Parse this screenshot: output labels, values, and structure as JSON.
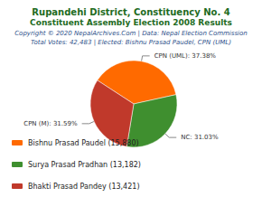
{
  "chart_data": {
    "type": "pie",
    "title": "Rupandehi District, Constituency No. 4",
    "subtitle": "Constituent Assembly Election 2008 Results",
    "annotations": [
      "Copyright © 2020 NepalArchives.Com | Data: Nepal Election Commission",
      "Total Votes: 42,483 | Elected: Bishnu Prasad Paudel, CPN (UML)"
    ],
    "categories": [
      "Bishnu Prasad Paudel (15,880)",
      "Surya Prasad Pradhan (13,182)",
      "Bhakti Prasad Pandey (13,421)"
    ],
    "values": [
      37.38,
      31.03,
      31.59
    ],
    "value_labels": [
      "CPN (UML): 37.38%",
      "NC: 31.03%",
      "CPN (M): 31.59%"
    ],
    "colors": [
      "#ff6a00",
      "#3f8f2f",
      "#c0392b"
    ],
    "data_labels": true,
    "legend": "bottom-left"
  }
}
